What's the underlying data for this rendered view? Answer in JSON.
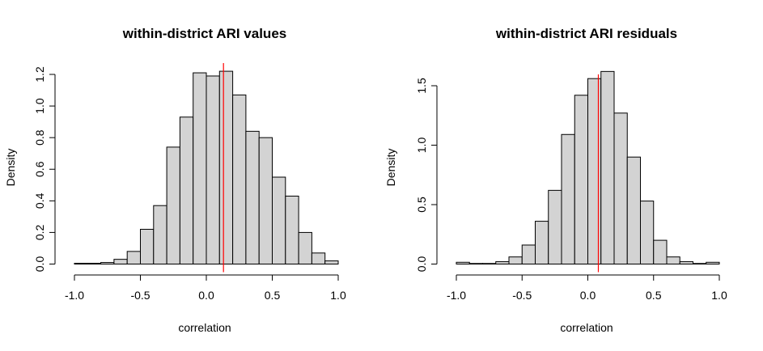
{
  "chart_data": [
    {
      "type": "bar",
      "title": "within-district ARI values",
      "xlabel": "correlation",
      "ylabel": "Density",
      "xlim": [
        -1.0,
        1.0
      ],
      "ylim": [
        0,
        1.2
      ],
      "bin_width": 0.1,
      "bin_starts": [
        -1.0,
        -0.9,
        -0.8,
        -0.7,
        -0.6,
        -0.5,
        -0.4,
        -0.3,
        -0.2,
        -0.1,
        0.0,
        0.1,
        0.2,
        0.3,
        0.4,
        0.5,
        0.6,
        0.7,
        0.8,
        0.9
      ],
      "values": [
        0.005,
        0.005,
        0.01,
        0.03,
        0.08,
        0.22,
        0.37,
        0.74,
        0.93,
        1.21,
        1.19,
        1.22,
        1.07,
        0.84,
        0.8,
        0.55,
        0.43,
        0.2,
        0.07,
        0.02
      ],
      "vline": 0.13,
      "vline_color": "#ff0000",
      "bar_fill": "#d3d3d3",
      "x_ticks": [
        -1.0,
        -0.5,
        0.0,
        0.5,
        1.0
      ],
      "x_tick_labels": [
        "-1.0",
        "-0.5",
        "0.0",
        "0.5",
        "1.0"
      ],
      "y_ticks": [
        0.0,
        0.2,
        0.4,
        0.6,
        0.8,
        1.0,
        1.2
      ],
      "y_tick_labels": [
        "0.0",
        "0.2",
        "0.4",
        "0.6",
        "0.8",
        "1.0",
        "1.2"
      ]
    },
    {
      "type": "bar",
      "title": "within-district ARI residuals",
      "xlabel": "correlation",
      "ylabel": "Density",
      "xlim": [
        -1.0,
        1.0
      ],
      "ylim": [
        0,
        1.5
      ],
      "bin_width": 0.1,
      "bin_starts": [
        -1.0,
        -0.9,
        -0.8,
        -0.7,
        -0.6,
        -0.5,
        -0.4,
        -0.3,
        -0.2,
        -0.1,
        0.0,
        0.1,
        0.2,
        0.3,
        0.4,
        0.5,
        0.6,
        0.7,
        0.8,
        0.9
      ],
      "values": [
        0.015,
        0.005,
        0.005,
        0.02,
        0.06,
        0.16,
        0.36,
        0.62,
        1.09,
        1.42,
        1.56,
        1.62,
        1.27,
        0.9,
        0.53,
        0.2,
        0.06,
        0.02,
        0.005,
        0.015
      ],
      "vline": 0.08,
      "vline_color": "#ff0000",
      "bar_fill": "#d3d3d3",
      "x_ticks": [
        -1.0,
        -0.5,
        0.0,
        0.5,
        1.0
      ],
      "x_tick_labels": [
        "-1.0",
        "-0.5",
        "0.0",
        "0.5",
        "1.0"
      ],
      "y_ticks": [
        0.0,
        0.5,
        1.0,
        1.5
      ],
      "y_tick_labels": [
        "0.0",
        "0.5",
        "1.0",
        "1.5"
      ]
    }
  ]
}
